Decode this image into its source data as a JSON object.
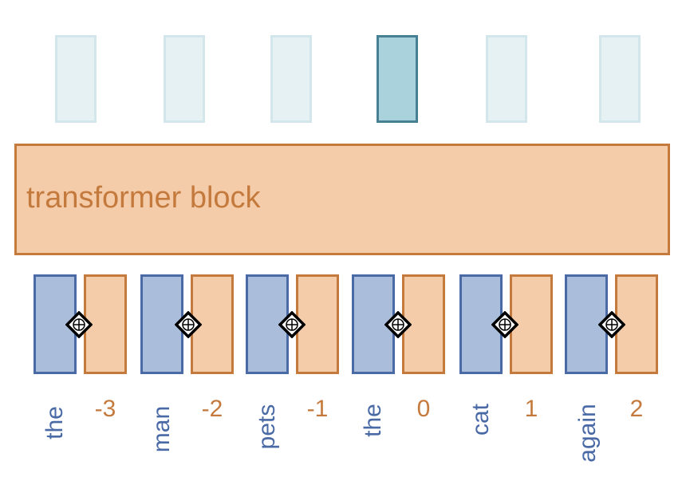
{
  "block": {
    "label": "transformer block"
  },
  "outputs": {
    "active_index": 3,
    "count": 6
  },
  "tokens": [
    {
      "word": "the",
      "position": "-3"
    },
    {
      "word": "man",
      "position": "-2"
    },
    {
      "word": "pets",
      "position": "-1"
    },
    {
      "word": "the",
      "position": "0"
    },
    {
      "word": "cat",
      "position": "1"
    },
    {
      "word": "again",
      "position": "2"
    }
  ],
  "colors": {
    "token_fill": "#aabdda",
    "token_border": "#4a6aa6",
    "position_fill": "#f4ccaa",
    "position_border": "#c57a3d",
    "output_fill": "#e6f1f4",
    "output_active_fill": "#a9d2dd",
    "output_active_border": "#477f93"
  },
  "icons": {
    "combine": "plus-diamond-icon"
  }
}
